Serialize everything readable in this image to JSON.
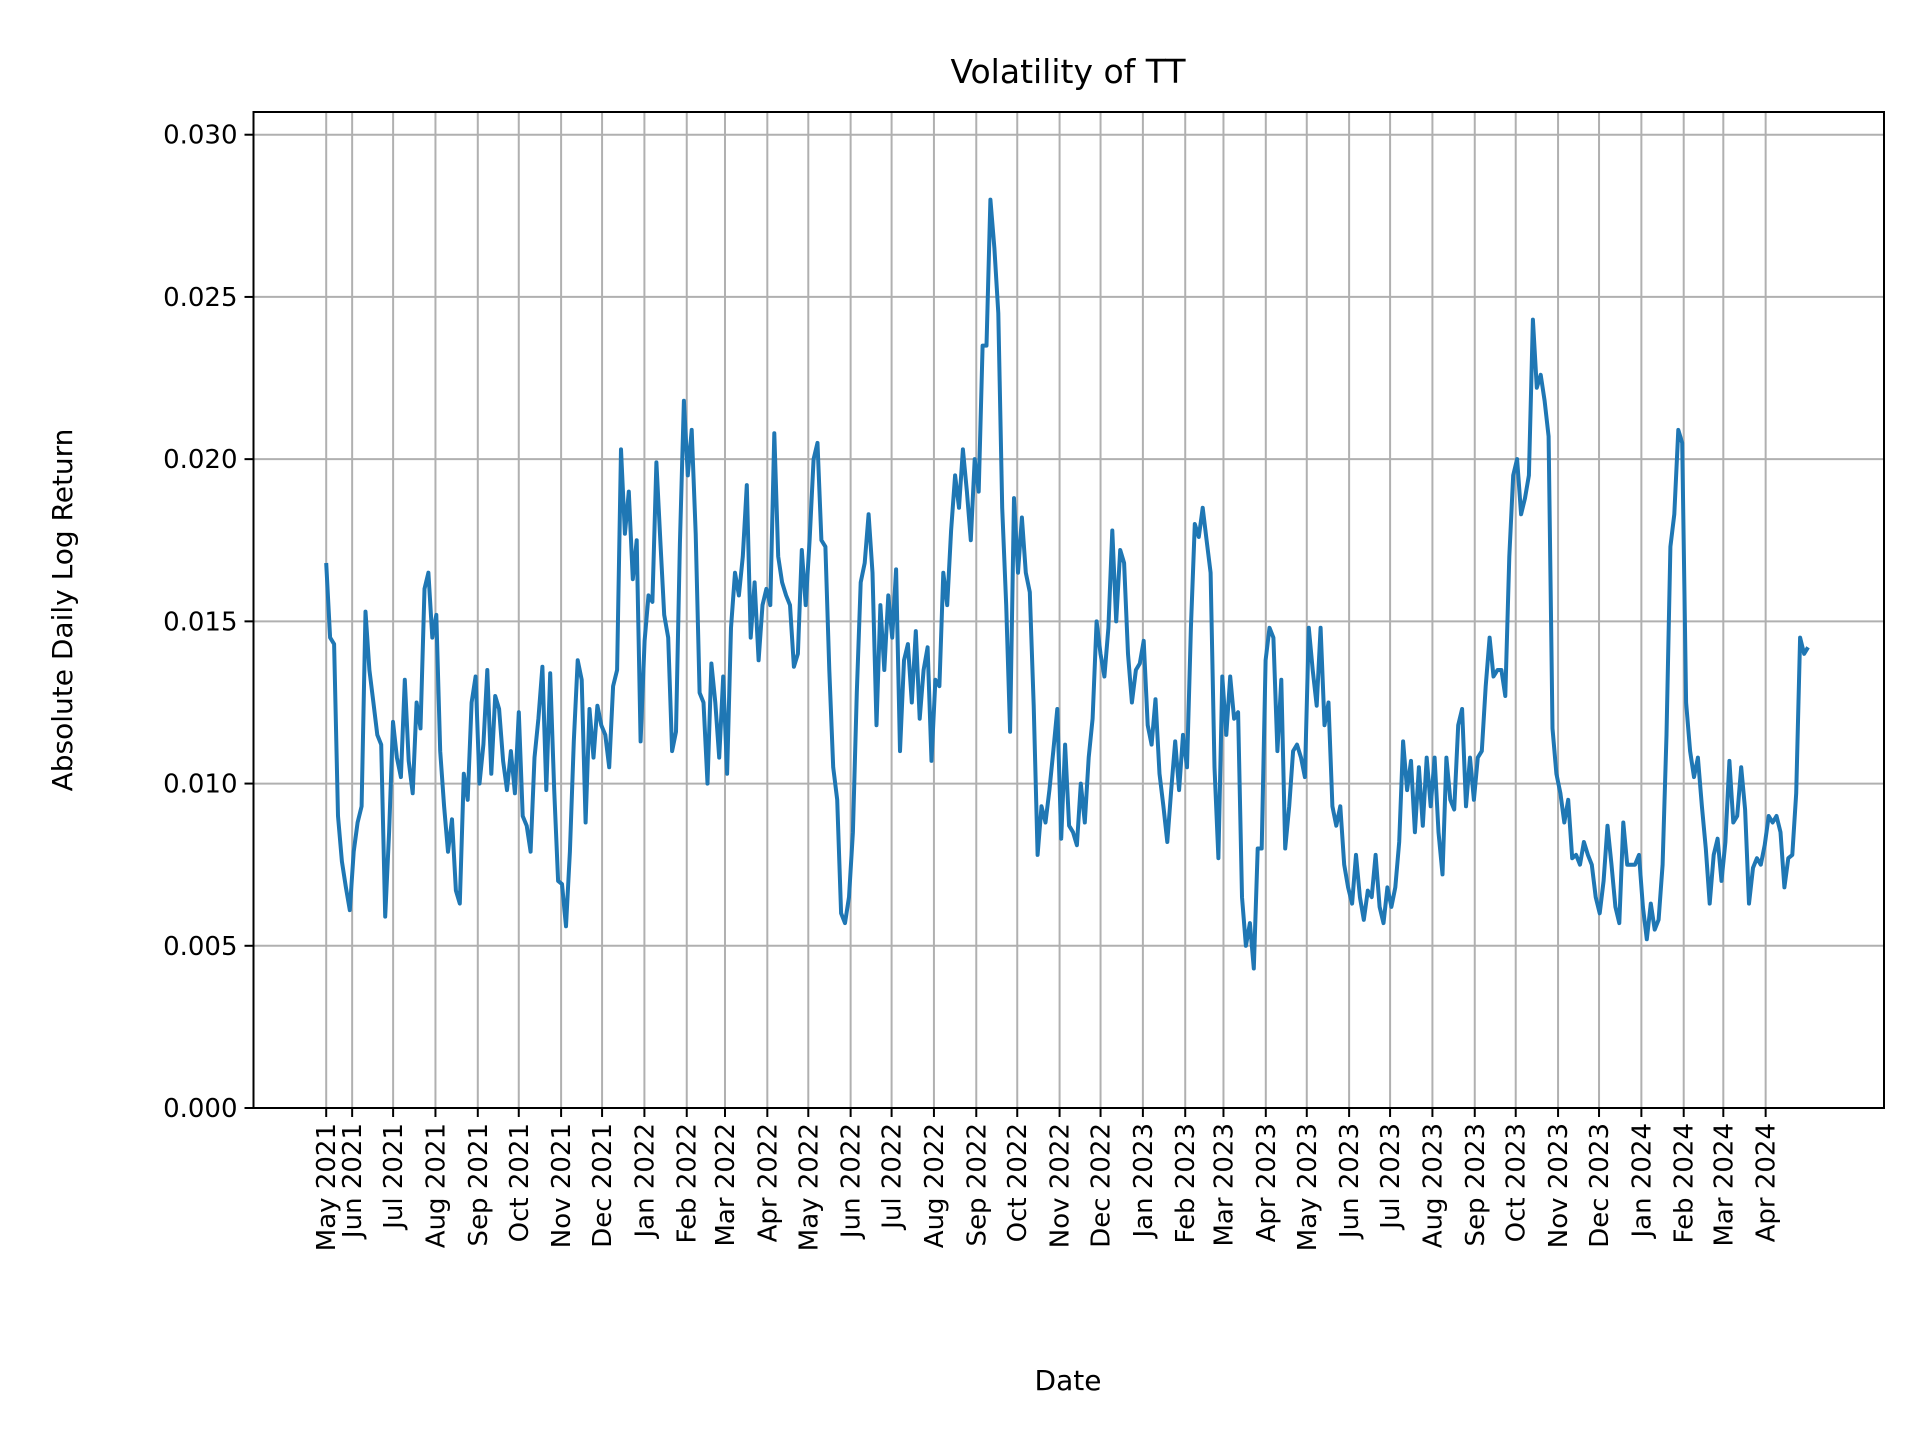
{
  "chart_data": {
    "type": "line",
    "title": "Volatility of TT",
    "xlabel": "Date",
    "ylabel": "Absolute Daily Log Return",
    "ylim": [
      0,
      0.0307
    ],
    "yticks": [
      "0.000",
      "0.005",
      "0.010",
      "0.015",
      "0.020",
      "0.025",
      "0.030"
    ],
    "grid": true,
    "line_color": "#1f77b4",
    "grid_color": "#b0b0b0",
    "date_range": [
      "2021-05-13",
      "2024-05-02"
    ],
    "xticks": [
      {
        "date": "2021-05-13",
        "label": "May 2021"
      },
      {
        "date": "2021-06-01",
        "label": "Jun 2021"
      },
      {
        "date": "2021-07-01",
        "label": "Jul 2021"
      },
      {
        "date": "2021-08-01",
        "label": "Aug 2021"
      },
      {
        "date": "2021-09-01",
        "label": "Sep 2021"
      },
      {
        "date": "2021-10-01",
        "label": "Oct 2021"
      },
      {
        "date": "2021-11-01",
        "label": "Nov 2021"
      },
      {
        "date": "2021-12-01",
        "label": "Dec 2021"
      },
      {
        "date": "2022-01-01",
        "label": "Jan 2022"
      },
      {
        "date": "2022-02-01",
        "label": "Feb 2022"
      },
      {
        "date": "2022-03-01",
        "label": "Mar 2022"
      },
      {
        "date": "2022-04-01",
        "label": "Apr 2022"
      },
      {
        "date": "2022-05-01",
        "label": "May 2022"
      },
      {
        "date": "2022-06-01",
        "label": "Jun 2022"
      },
      {
        "date": "2022-07-01",
        "label": "Jul 2022"
      },
      {
        "date": "2022-08-01",
        "label": "Aug 2022"
      },
      {
        "date": "2022-09-01",
        "label": "Sep 2022"
      },
      {
        "date": "2022-10-01",
        "label": "Oct 2022"
      },
      {
        "date": "2022-11-01",
        "label": "Nov 2022"
      },
      {
        "date": "2022-12-01",
        "label": "Dec 2022"
      },
      {
        "date": "2023-01-01",
        "label": "Jan 2023"
      },
      {
        "date": "2023-02-01",
        "label": "Feb 2023"
      },
      {
        "date": "2023-03-01",
        "label": "Mar 2023"
      },
      {
        "date": "2023-04-01",
        "label": "Apr 2023"
      },
      {
        "date": "2023-05-01",
        "label": "May 2023"
      },
      {
        "date": "2023-06-01",
        "label": "Jun 2023"
      },
      {
        "date": "2023-07-01",
        "label": "Jul 2023"
      },
      {
        "date": "2023-08-01",
        "label": "Aug 2023"
      },
      {
        "date": "2023-09-01",
        "label": "Sep 2023"
      },
      {
        "date": "2023-10-01",
        "label": "Oct 2023"
      },
      {
        "date": "2023-11-01",
        "label": "Nov 2023"
      },
      {
        "date": "2023-12-01",
        "label": "Dec 2023"
      },
      {
        "date": "2024-01-01",
        "label": "Jan 2024"
      },
      {
        "date": "2024-02-01",
        "label": "Feb 2024"
      },
      {
        "date": "2024-03-01",
        "label": "Mar 2024"
      },
      {
        "date": "2024-04-01",
        "label": "Apr 2024"
      }
    ],
    "values": [
      0.0168,
      0.0145,
      0.0143,
      0.009,
      0.0076,
      0.0068,
      0.0061,
      0.0079,
      0.0088,
      0.0093,
      0.0153,
      0.0135,
      0.0125,
      0.0115,
      0.0112,
      0.0059,
      0.0085,
      0.0119,
      0.0108,
      0.0102,
      0.0132,
      0.0107,
      0.0097,
      0.0125,
      0.0117,
      0.016,
      0.0165,
      0.0145,
      0.0152,
      0.011,
      0.0093,
      0.0079,
      0.0089,
      0.0067,
      0.0063,
      0.0103,
      0.0095,
      0.0125,
      0.0133,
      0.01,
      0.0112,
      0.0135,
      0.0103,
      0.0127,
      0.0123,
      0.0107,
      0.0098,
      0.011,
      0.0097,
      0.0122,
      0.009,
      0.0087,
      0.0079,
      0.0108,
      0.012,
      0.0136,
      0.0098,
      0.0134,
      0.0098,
      0.007,
      0.0069,
      0.0056,
      0.0079,
      0.0113,
      0.0138,
      0.0132,
      0.0088,
      0.0123,
      0.0108,
      0.0124,
      0.0118,
      0.0115,
      0.0105,
      0.013,
      0.0135,
      0.0203,
      0.0177,
      0.019,
      0.0163,
      0.0175,
      0.0113,
      0.0144,
      0.0158,
      0.0156,
      0.0199,
      0.0175,
      0.0152,
      0.0145,
      0.011,
      0.0116,
      0.0174,
      0.0218,
      0.0195,
      0.0209,
      0.0177,
      0.0128,
      0.0125,
      0.01,
      0.0137,
      0.0125,
      0.0108,
      0.0133,
      0.0103,
      0.0148,
      0.0165,
      0.0158,
      0.017,
      0.0192,
      0.0145,
      0.0162,
      0.0138,
      0.0155,
      0.016,
      0.0155,
      0.0208,
      0.017,
      0.0162,
      0.0158,
      0.0155,
      0.0136,
      0.014,
      0.0172,
      0.0155,
      0.0175,
      0.02,
      0.0205,
      0.0175,
      0.0173,
      0.0135,
      0.0105,
      0.0095,
      0.006,
      0.0057,
      0.0065,
      0.0085,
      0.0128,
      0.0162,
      0.0168,
      0.0183,
      0.0165,
      0.0118,
      0.0155,
      0.0135,
      0.0158,
      0.0145,
      0.0166,
      0.011,
      0.0138,
      0.0143,
      0.0125,
      0.0147,
      0.012,
      0.0135,
      0.0142,
      0.0107,
      0.0132,
      0.013,
      0.0165,
      0.0155,
      0.0178,
      0.0195,
      0.0185,
      0.0203,
      0.019,
      0.0175,
      0.02,
      0.019,
      0.0235,
      0.0235,
      0.028,
      0.0265,
      0.0245,
      0.0185,
      0.0155,
      0.0116,
      0.0188,
      0.0165,
      0.0182,
      0.0165,
      0.0159,
      0.0124,
      0.0078,
      0.0093,
      0.0088,
      0.0098,
      0.011,
      0.0123,
      0.0083,
      0.0112,
      0.0087,
      0.0085,
      0.0081,
      0.01,
      0.0088,
      0.0108,
      0.012,
      0.015,
      0.014,
      0.0133,
      0.0148,
      0.0178,
      0.015,
      0.0172,
      0.0168,
      0.014,
      0.0125,
      0.0135,
      0.0137,
      0.0144,
      0.0118,
      0.0112,
      0.0126,
      0.0103,
      0.0093,
      0.0082,
      0.0098,
      0.0113,
      0.0098,
      0.0115,
      0.0105,
      0.0148,
      0.018,
      0.0176,
      0.0185,
      0.0175,
      0.0165,
      0.0105,
      0.0077,
      0.0133,
      0.0115,
      0.0133,
      0.012,
      0.0122,
      0.0065,
      0.005,
      0.0057,
      0.0043,
      0.008,
      0.008,
      0.0138,
      0.0148,
      0.0145,
      0.011,
      0.0132,
      0.008,
      0.0093,
      0.011,
      0.0112,
      0.0108,
      0.0102,
      0.0148,
      0.0135,
      0.0124,
      0.0148,
      0.0118,
      0.0125,
      0.0093,
      0.0087,
      0.0093,
      0.0075,
      0.0068,
      0.0063,
      0.0078,
      0.0065,
      0.0058,
      0.0067,
      0.0065,
      0.0078,
      0.0062,
      0.0057,
      0.0068,
      0.0062,
      0.0068,
      0.0082,
      0.0113,
      0.0098,
      0.0107,
      0.0085,
      0.0105,
      0.0087,
      0.0108,
      0.0093,
      0.0108,
      0.0085,
      0.0072,
      0.0108,
      0.0095,
      0.0092,
      0.0118,
      0.0123,
      0.0093,
      0.0108,
      0.0095,
      0.0108,
      0.011,
      0.013,
      0.0145,
      0.0133,
      0.0135,
      0.0135,
      0.0127,
      0.017,
      0.0195,
      0.02,
      0.0183,
      0.0188,
      0.0195,
      0.0243,
      0.0222,
      0.0226,
      0.0218,
      0.0207,
      0.0117,
      0.0103,
      0.0097,
      0.0088,
      0.0095,
      0.0077,
      0.0078,
      0.0075,
      0.0082,
      0.0078,
      0.0075,
      0.0065,
      0.006,
      0.007,
      0.0087,
      0.0075,
      0.0062,
      0.0057,
      0.0088,
      0.0075,
      0.0075,
      0.0075,
      0.0078,
      0.0062,
      0.0052,
      0.0063,
      0.0055,
      0.0058,
      0.0075,
      0.0115,
      0.0173,
      0.0183,
      0.0209,
      0.0205,
      0.0125,
      0.011,
      0.0102,
      0.0108,
      0.0093,
      0.008,
      0.0063,
      0.0078,
      0.0083,
      0.007,
      0.0082,
      0.0107,
      0.0088,
      0.009,
      0.0105,
      0.0092,
      0.0063,
      0.0074,
      0.0077,
      0.0075,
      0.0081,
      0.009,
      0.0088,
      0.009,
      0.0085,
      0.0068,
      0.0077,
      0.0078,
      0.0097,
      0.0145,
      0.014,
      0.0142
    ]
  }
}
